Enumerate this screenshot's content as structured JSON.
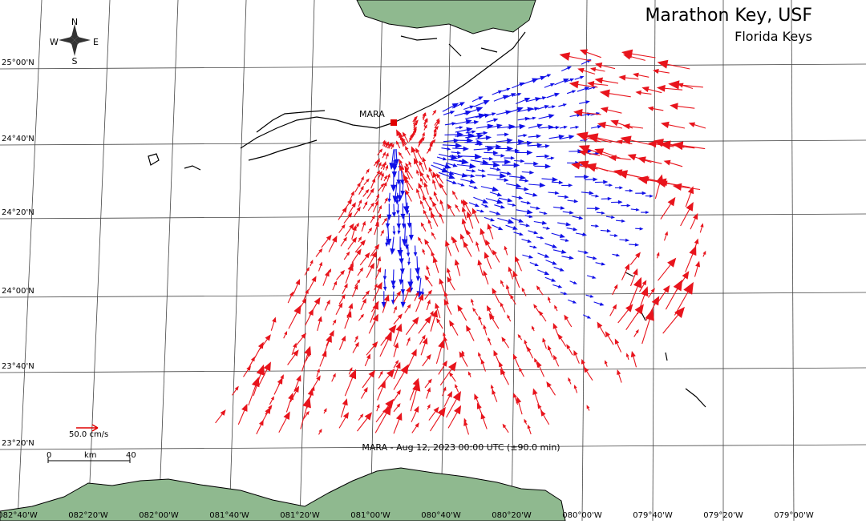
{
  "header": {
    "title": "Marathon Key, USF",
    "subtitle": "Florida Keys"
  },
  "station": "MARA",
  "compass": {
    "north": "N",
    "south": "S",
    "east": "E",
    "west": "W"
  },
  "latitude_labels": [
    "25°00'N",
    "24°40'N",
    "24°20'N",
    "24°00'N",
    "23°40'N",
    "23°20'N"
  ],
  "longitude_labels": [
    "082°40'W",
    "082°20'W",
    "082°00'W",
    "081°40'W",
    "081°20'W",
    "081°00'W",
    "080°40'W",
    "080°20'W",
    "080°00'W",
    "079°40'W",
    "079°20'W",
    "079°00'W"
  ],
  "legend": {
    "vector_scale": "50.0 cm/s",
    "scale_bar": {
      "start": "0",
      "unit": "km",
      "end": "40"
    }
  },
  "timestamp": "MARA - Aug 12, 2023 00:00 UTC (±90.0 min)"
}
